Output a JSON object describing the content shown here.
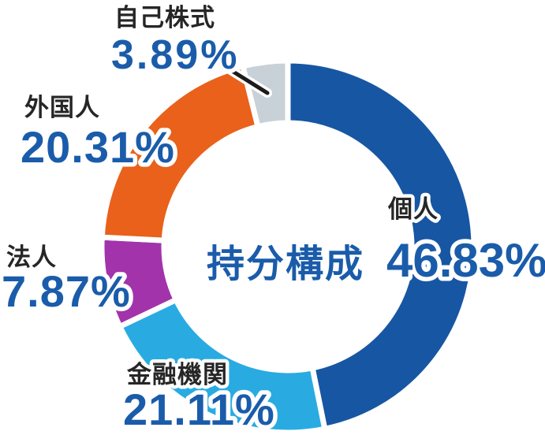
{
  "chart_data": {
    "type": "pie",
    "subtype": "donut",
    "title": "持分構成",
    "direction": "clockwise",
    "start_angle_deg": 0,
    "legend_position": "around-chart",
    "segments": [
      {
        "label": "個人",
        "value": 46.83,
        "value_label": "46.83%",
        "color": "#1756a3"
      },
      {
        "label": "金融機関",
        "value": 21.11,
        "value_label": "21.11%",
        "color": "#29abe2"
      },
      {
        "label": "法人",
        "value": 7.87,
        "value_label": "7.87%",
        "color": "#a233ab"
      },
      {
        "label": "外国人",
        "value": 20.31,
        "value_label": "20.31%",
        "color": "#e9611b"
      },
      {
        "label": "自己株式",
        "value": 3.89,
        "value_label": "3.89%",
        "color": "#c8d1d7"
      }
    ],
    "colors": {
      "percent_text": "#1a5caa",
      "category_text": "#262626",
      "title_text": "#1a5caa",
      "segment_divider": "#ffffff",
      "leader_line": "#1c1c1c"
    }
  }
}
